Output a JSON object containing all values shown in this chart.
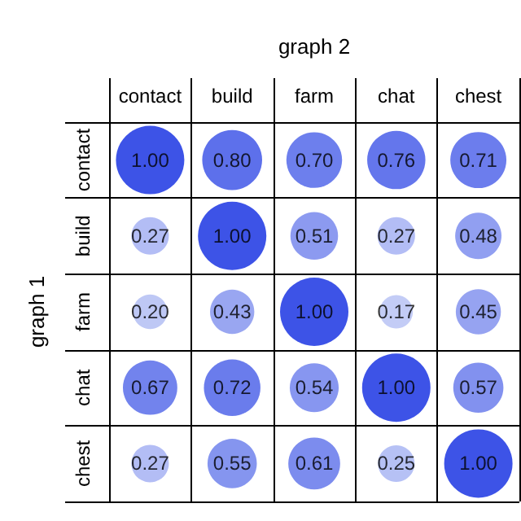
{
  "chart_data": {
    "type": "heatmap",
    "xlabel": "graph 2",
    "ylabel": "graph 1",
    "categories": [
      "contact",
      "build",
      "farm",
      "chat",
      "chest"
    ],
    "y_categories": [
      "contact",
      "build",
      "farm",
      "chat",
      "chest"
    ],
    "cells": [
      [
        1.0,
        0.8,
        0.7,
        0.76,
        0.71
      ],
      [
        0.27,
        1.0,
        0.51,
        0.27,
        0.48
      ],
      [
        0.2,
        0.43,
        1.0,
        0.17,
        0.45
      ],
      [
        0.67,
        0.72,
        0.54,
        1.0,
        0.57
      ],
      [
        0.27,
        0.55,
        0.61,
        0.25,
        1.0
      ]
    ],
    "cell_labels": [
      [
        "1.00",
        "0.80",
        "0.70",
        "0.76",
        "0.71"
      ],
      [
        "0.27",
        "1.00",
        "0.51",
        "0.27",
        "0.48"
      ],
      [
        "0.20",
        "0.43",
        "1.00",
        "0.17",
        "0.45"
      ],
      [
        "0.67",
        "0.72",
        "0.54",
        "1.00",
        "0.57"
      ],
      [
        "0.27",
        "0.55",
        "0.61",
        "0.25",
        "1.00"
      ]
    ],
    "grid": true,
    "color": "#0c28e1"
  }
}
